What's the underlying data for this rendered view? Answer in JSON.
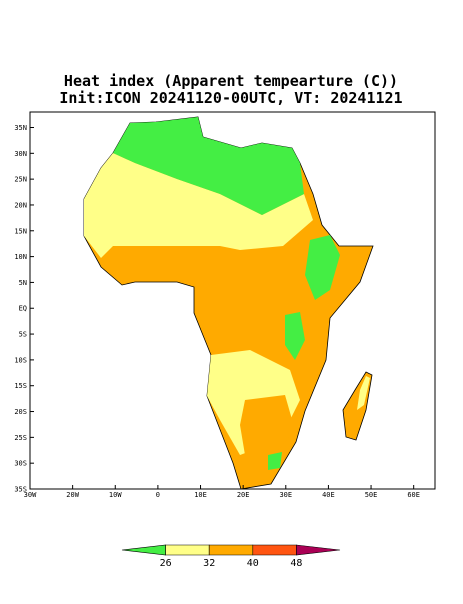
{
  "map": {
    "title": "Heat index (Apparent tempearture (C))",
    "subtitle": "Init:ICON 20241120-00UTC, VT: 20241121",
    "lonlim": [
      -30,
      65
    ],
    "latlim": [
      -35,
      38
    ],
    "lon_ticks": [
      {
        "value": -30,
        "label": "30W"
      },
      {
        "value": -20,
        "label": "20W"
      },
      {
        "value": -10,
        "label": "10W"
      },
      0,
      {
        "value": 10,
        "label": "10E"
      },
      {
        "value": 20,
        "label": "20E"
      },
      {
        "value": 30,
        "label": "30E"
      },
      {
        "value": 40,
        "label": "40E"
      },
      {
        "value": 50,
        "label": "50E"
      },
      {
        "value": 60,
        "label": "60E"
      }
    ],
    "lat_ticks": [
      {
        "value": 35,
        "label": "35N"
      },
      {
        "value": 30,
        "label": "30N"
      },
      {
        "value": 25,
        "label": "25N"
      },
      {
        "value": 20,
        "label": "20N"
      },
      {
        "value": 15,
        "label": "15N"
      },
      {
        "value": 10,
        "label": "10N"
      },
      {
        "value": 5,
        "label": "5N"
      },
      {
        "value": 0,
        "label": "EQ"
      },
      {
        "value": -5,
        "label": "5S"
      },
      {
        "value": -10,
        "label": "10S"
      },
      {
        "value": -15,
        "label": "15S"
      },
      {
        "value": -20,
        "label": "20S"
      },
      {
        "value": -25,
        "label": "25S"
      },
      {
        "value": -30,
        "label": "30S"
      },
      {
        "value": -35,
        "label": "35S"
      }
    ]
  },
  "colorbar": {
    "ticks": [
      26,
      32,
      40,
      48
    ],
    "colors": [
      "#44ee44",
      "#ffff88",
      "#ffaa00",
      "#ff5511",
      "#aa0055"
    ]
  }
}
